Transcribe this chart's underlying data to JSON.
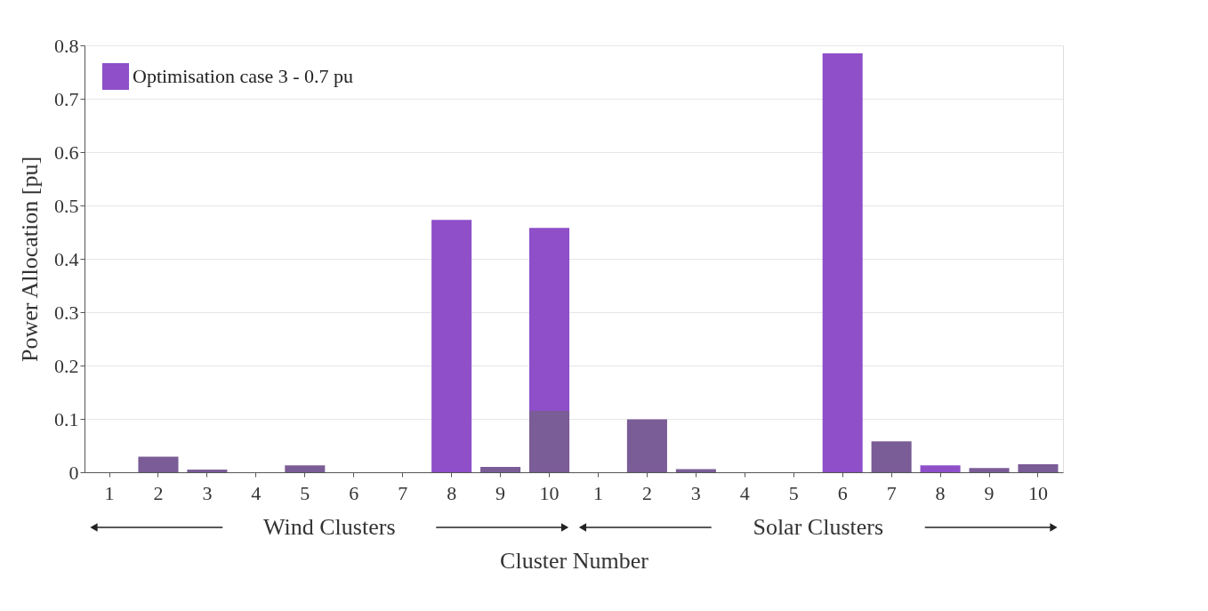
{
  "chart_data": {
    "type": "bar",
    "xlabel": "Cluster Number",
    "ylabel": "Power Allocation [pu]",
    "categories": [
      "1",
      "2",
      "3",
      "4",
      "5",
      "6",
      "7",
      "8",
      "9",
      "10",
      "1",
      "2",
      "3",
      "4",
      "5",
      "6",
      "7",
      "8",
      "9",
      "10"
    ],
    "series": [
      {
        "name": "Optimisation case 3 - 0.7 pu",
        "color": "#8e4fc9",
        "values": [
          0,
          null,
          null,
          0,
          null,
          0,
          0,
          0.473,
          null,
          0.458,
          0,
          null,
          null,
          0,
          0,
          0.785,
          null,
          0.013,
          null,
          null
        ]
      },
      {
        "color": "#7a5c96",
        "values": [
          0,
          0.029,
          0.005,
          0,
          0.013,
          0,
          0,
          null,
          0.01,
          0.115,
          0,
          0.099,
          0.006,
          0,
          0,
          null,
          0.058,
          null,
          0.008,
          0.015
        ]
      }
    ],
    "ylim": [
      0,
      0.8
    ],
    "yticks": [
      0,
      0.1,
      0.2,
      0.3,
      0.4,
      0.5,
      0.6,
      0.7,
      0.8
    ],
    "grid": "y",
    "legend": "top left",
    "annotations": [
      "Wind Clusters",
      "Solar Clusters"
    ]
  }
}
